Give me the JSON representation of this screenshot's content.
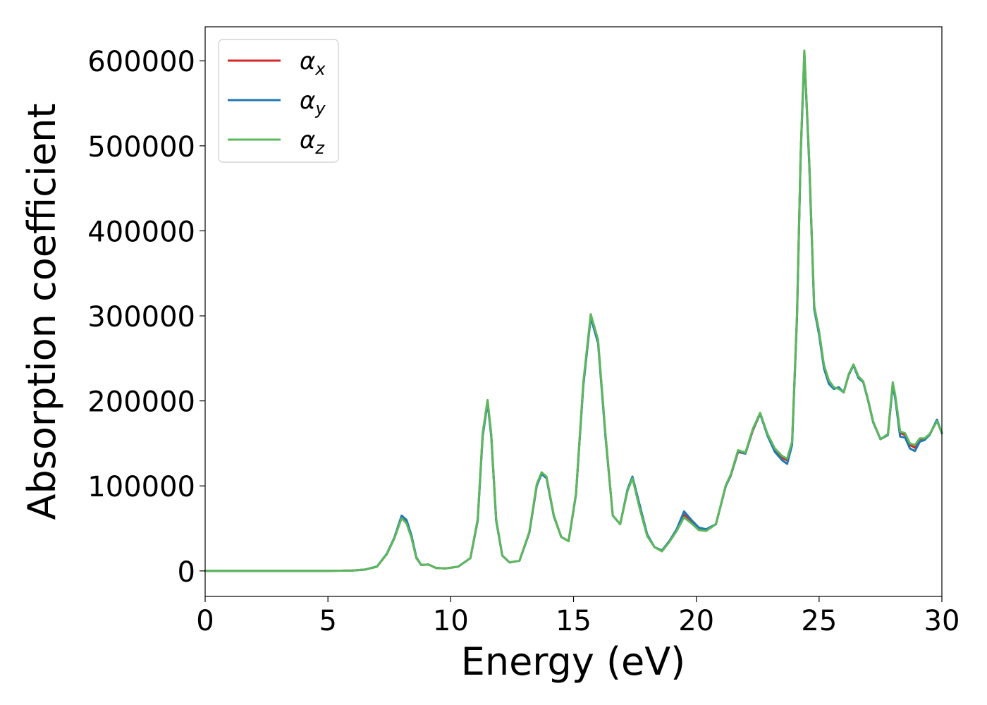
{
  "chart_data": {
    "type": "line",
    "xlabel": "Energy (eV)",
    "ylabel": "Absorption coefficient",
    "xlim": [
      0,
      30
    ],
    "ylim": [
      -30000,
      640000
    ],
    "xticks": [
      0,
      5,
      10,
      15,
      20,
      25,
      30
    ],
    "xtick_labels": [
      "0",
      "5",
      "10",
      "15",
      "20",
      "25",
      "30"
    ],
    "yticks": [
      0,
      100000,
      200000,
      300000,
      400000,
      500000,
      600000
    ],
    "ytick_labels": [
      "0",
      "100000",
      "200000",
      "300000",
      "400000",
      "500000",
      "600000"
    ],
    "grid": false,
    "legend_position": "top-left",
    "x": [
      0,
      1,
      2,
      3,
      4,
      5,
      6,
      6.5,
      7.0,
      7.4,
      7.7,
      8.0,
      8.2,
      8.4,
      8.6,
      8.8,
      9.1,
      9.4,
      9.8,
      10.3,
      10.8,
      11.1,
      11.3,
      11.5,
      11.65,
      11.85,
      12.1,
      12.4,
      12.8,
      13.2,
      13.5,
      13.7,
      13.9,
      14.2,
      14.5,
      14.8,
      15.1,
      15.4,
      15.7,
      16.0,
      16.3,
      16.6,
      16.9,
      17.2,
      17.4,
      17.7,
      18.0,
      18.3,
      18.6,
      18.9,
      19.2,
      19.5,
      19.8,
      20.1,
      20.4,
      20.8,
      21.2,
      21.4,
      21.7,
      22.0,
      22.3,
      22.6,
      22.9,
      23.2,
      23.5,
      23.7,
      23.9,
      24.1,
      24.25,
      24.4,
      24.6,
      24.8,
      25.0,
      25.2,
      25.4,
      25.6,
      25.8,
      26.0,
      26.2,
      26.4,
      26.6,
      26.8,
      27.0,
      27.2,
      27.5,
      27.8,
      28.0,
      28.1,
      28.3,
      28.5,
      28.7,
      28.9,
      29.1,
      29.3,
      29.5,
      29.8,
      30.0
    ],
    "series": [
      {
        "name": "α_x",
        "color": "#d62728",
        "values": [
          0,
          0,
          0,
          0,
          0,
          0,
          500,
          1500,
          5000,
          20000,
          38000,
          63000,
          58000,
          40000,
          15000,
          7000,
          7500,
          3500,
          3000,
          5000,
          15000,
          60000,
          160000,
          200000,
          160000,
          60000,
          18000,
          10000,
          12000,
          45000,
          100000,
          115000,
          110000,
          65000,
          40000,
          35000,
          90000,
          220000,
          300000,
          270000,
          160000,
          65000,
          55000,
          95000,
          110000,
          75000,
          42000,
          28000,
          24000,
          35000,
          48000,
          66000,
          58000,
          50000,
          48000,
          55000,
          100000,
          112000,
          140000,
          138000,
          165000,
          185000,
          160000,
          142000,
          133000,
          130000,
          150000,
          300000,
          490000,
          610000,
          480000,
          310000,
          280000,
          240000,
          222000,
          215000,
          215000,
          210000,
          230000,
          242000,
          228000,
          222000,
          200000,
          175000,
          155000,
          160000,
          220000,
          205000,
          162000,
          160000,
          148000,
          145000,
          155000,
          155000,
          160000,
          177000,
          162000
        ]
      },
      {
        "name": "α_y",
        "color": "#1f77b4",
        "values": [
          0,
          0,
          0,
          0,
          0,
          0,
          500,
          1500,
          5200,
          20500,
          39000,
          65000,
          60000,
          42000,
          16000,
          7000,
          7500,
          3500,
          3000,
          5000,
          15000,
          59000,
          158000,
          198000,
          158000,
          59000,
          18000,
          10000,
          12000,
          45000,
          100000,
          114000,
          109000,
          64000,
          40000,
          35000,
          90000,
          218000,
          298000,
          268000,
          158000,
          65000,
          55000,
          96000,
          111000,
          77000,
          43000,
          28000,
          24000,
          35000,
          49000,
          70000,
          60000,
          51000,
          49000,
          55000,
          100000,
          112000,
          141000,
          138000,
          166000,
          185000,
          159000,
          140000,
          130000,
          126000,
          148000,
          298000,
          488000,
          608000,
          478000,
          308000,
          278000,
          238000,
          220000,
          214000,
          216000,
          210000,
          230000,
          242000,
          227000,
          222000,
          200000,
          175000,
          155000,
          160000,
          218000,
          203000,
          158000,
          157000,
          144000,
          141000,
          152000,
          154000,
          160000,
          178000,
          162000
        ]
      },
      {
        "name": "α_z",
        "color": "#5cb85c",
        "values": [
          0,
          0,
          0,
          0,
          0,
          0,
          500,
          1500,
          5000,
          20000,
          38000,
          62000,
          56000,
          39000,
          15000,
          7000,
          7500,
          3500,
          3000,
          5000,
          15000,
          61000,
          162000,
          201000,
          161000,
          61000,
          18000,
          10000,
          12000,
          46000,
          102000,
          116000,
          111000,
          65000,
          40000,
          35000,
          91000,
          222000,
          302000,
          272000,
          161000,
          65000,
          55000,
          94000,
          109000,
          73000,
          41000,
          28000,
          23000,
          34000,
          47000,
          63000,
          56000,
          48000,
          47000,
          55000,
          101000,
          113000,
          142000,
          139000,
          167000,
          186000,
          161000,
          144000,
          135000,
          132000,
          152000,
          302000,
          492000,
          612000,
          482000,
          312000,
          282000,
          242000,
          224000,
          216000,
          214000,
          210000,
          231000,
          243000,
          229000,
          223000,
          201000,
          176000,
          155000,
          161000,
          222000,
          207000,
          164000,
          162000,
          150000,
          148000,
          156000,
          156000,
          161000,
          176000,
          163000
        ]
      }
    ]
  }
}
